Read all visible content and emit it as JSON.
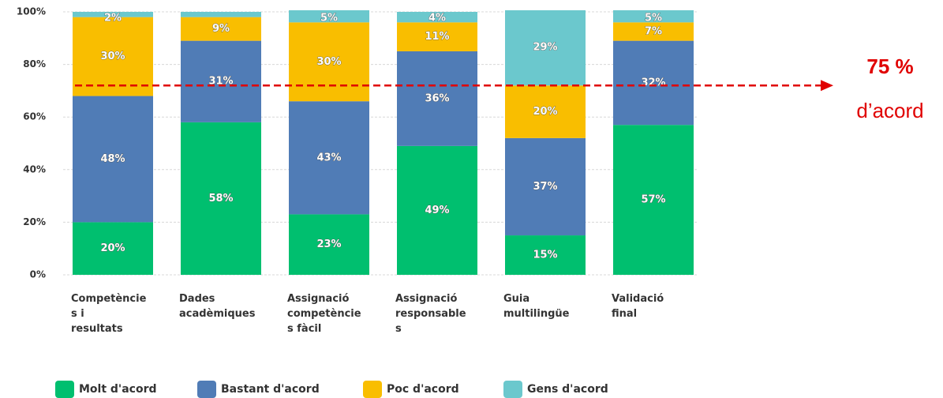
{
  "chart_data": {
    "type": "stacked_bar",
    "categories": [
      "Competències i resultats",
      "Dades acadèmiques",
      "Assignació competències fàcil",
      "Assignació responsables",
      "Guia multilingüe",
      "Validació final"
    ],
    "series": [
      {
        "name": "Molt d'acord",
        "color": "#00bf6f",
        "values": [
          20,
          58,
          23,
          49,
          15,
          57
        ],
        "value_labels": [
          "20%",
          "58%",
          "23%",
          "49%",
          "15%",
          "57%"
        ]
      },
      {
        "name": "Bastant d'acord",
        "color": "#507cb6",
        "values": [
          48,
          31,
          43,
          36,
          37,
          32
        ],
        "value_labels": [
          "48%",
          "31%",
          "43%",
          "36%",
          "37%",
          "32%"
        ]
      },
      {
        "name": "Poc d'acord",
        "color": "#f9be00",
        "values": [
          30,
          9,
          30,
          11,
          20,
          7
        ],
        "value_labels": [
          "30%",
          "9%",
          "30%",
          "11%",
          "20%",
          "7%"
        ]
      },
      {
        "name": "Gens d'acord",
        "color": "#6bc8cd",
        "values": [
          2,
          2,
          5,
          4,
          29,
          5
        ],
        "value_labels": [
          "2%",
          null,
          "5%",
          "4%",
          "29%",
          "5%"
        ]
      }
    ],
    "ylim": [
      0,
      100
    ],
    "yticks": [
      {
        "value": 0,
        "label": "0%"
      },
      {
        "value": 20,
        "label": "20%"
      },
      {
        "value": 40,
        "label": "40%"
      },
      {
        "value": 60,
        "label": "60%"
      },
      {
        "value": 80,
        "label": "80%"
      },
      {
        "value": 100,
        "label": "100%"
      }
    ],
    "grid": true,
    "annotation": {
      "y": 72,
      "text": [
        "75 %",
        "d’acord"
      ],
      "color": "#e00000"
    }
  }
}
